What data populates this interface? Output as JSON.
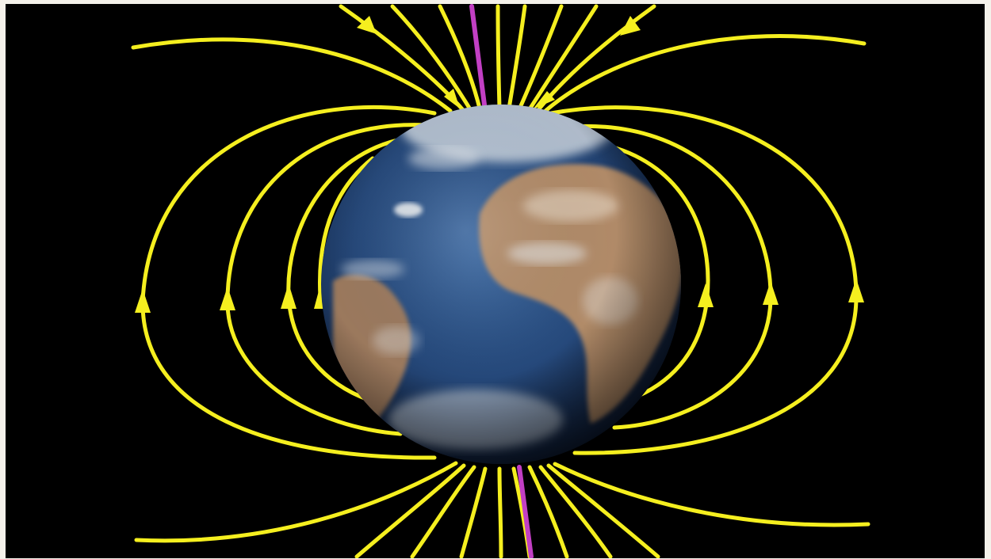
{
  "scene": {
    "subject": "earth-magnetic-field",
    "colors": {
      "background": "#000000",
      "frame_border": "#f4f1ea",
      "field_line": "#f5ef1f",
      "rotation_axis": "#c23fc4",
      "ocean": "#25487a",
      "land": "#b98f68",
      "cloud": "#e8ecef"
    },
    "icons": [
      "earth-globe-icon",
      "field-arrow-icon"
    ]
  }
}
